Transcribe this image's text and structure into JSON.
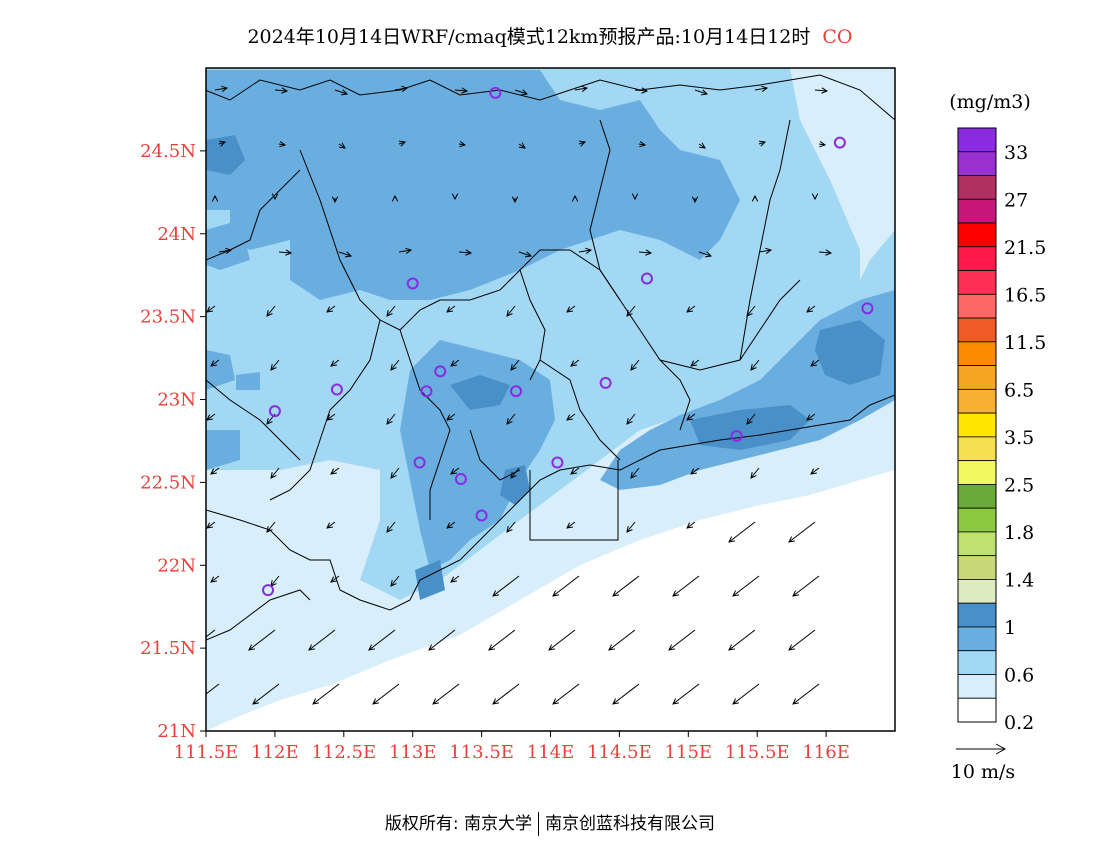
{
  "title": {
    "text": "2024年10月14日WRF/cmaq模式12km预报产品:10月14日12时",
    "species": "CO"
  },
  "map": {
    "lat_labels": [
      "24.5N",
      "24N",
      "23.5N",
      "23N",
      "22.5N",
      "22N",
      "21.5N",
      "21N"
    ],
    "lon_labels": [
      "111.5E",
      "112E",
      "112.5E",
      "113E",
      "113.5E",
      "114E",
      "114.5E",
      "115E",
      "115.5E",
      "116E"
    ],
    "lat_range": [
      21,
      25
    ],
    "lon_range": [
      111.5,
      116.5
    ]
  },
  "colorbar": {
    "unit": "(mg/m3)",
    "labels": [
      "33",
      "27",
      "21.5",
      "16.5",
      "11.5",
      "6.5",
      "3.5",
      "2.5",
      "1.8",
      "1.4",
      "1",
      "0.6",
      "0.2"
    ],
    "colors_top_to_bottom": [
      "#8a2be2",
      "#9b30d0",
      "#b03060",
      "#c8157a",
      "#ff0000",
      "#ff1a4b",
      "#ff3057",
      "#ff6666",
      "#f05a28",
      "#ff8c00",
      "#f4a523",
      "#f7b030",
      "#ffe500",
      "#f5e050",
      "#f0fa60",
      "#6aaa38",
      "#8cc840",
      "#c0e070",
      "#c8d878",
      "#dcecc0",
      "#4a90c8",
      "#6aaee0",
      "#a2d8f4",
      "#d8eefa",
      "#ffffff"
    ]
  },
  "wind_legend": {
    "label": "10 m/s"
  },
  "stations": [
    {
      "lon": 113.6,
      "lat": 24.85
    },
    {
      "lon": 116.1,
      "lat": 24.55
    },
    {
      "lon": 113.0,
      "lat": 23.7
    },
    {
      "lon": 114.7,
      "lat": 23.73
    },
    {
      "lon": 116.3,
      "lat": 23.55
    },
    {
      "lon": 113.2,
      "lat": 23.17
    },
    {
      "lon": 113.1,
      "lat": 23.05
    },
    {
      "lon": 113.75,
      "lat": 23.05
    },
    {
      "lon": 114.4,
      "lat": 23.1
    },
    {
      "lon": 112.45,
      "lat": 23.06
    },
    {
      "lon": 112.0,
      "lat": 22.93
    },
    {
      "lon": 113.05,
      "lat": 22.62
    },
    {
      "lon": 113.35,
      "lat": 22.52
    },
    {
      "lon": 114.05,
      "lat": 22.62
    },
    {
      "lon": 115.35,
      "lat": 22.78
    },
    {
      "lon": 113.5,
      "lat": 22.3
    },
    {
      "lon": 111.95,
      "lat": 21.85
    }
  ],
  "footer": {
    "left": "版权所有: 南京大学",
    "right": "南京创蓝科技有限公司"
  }
}
